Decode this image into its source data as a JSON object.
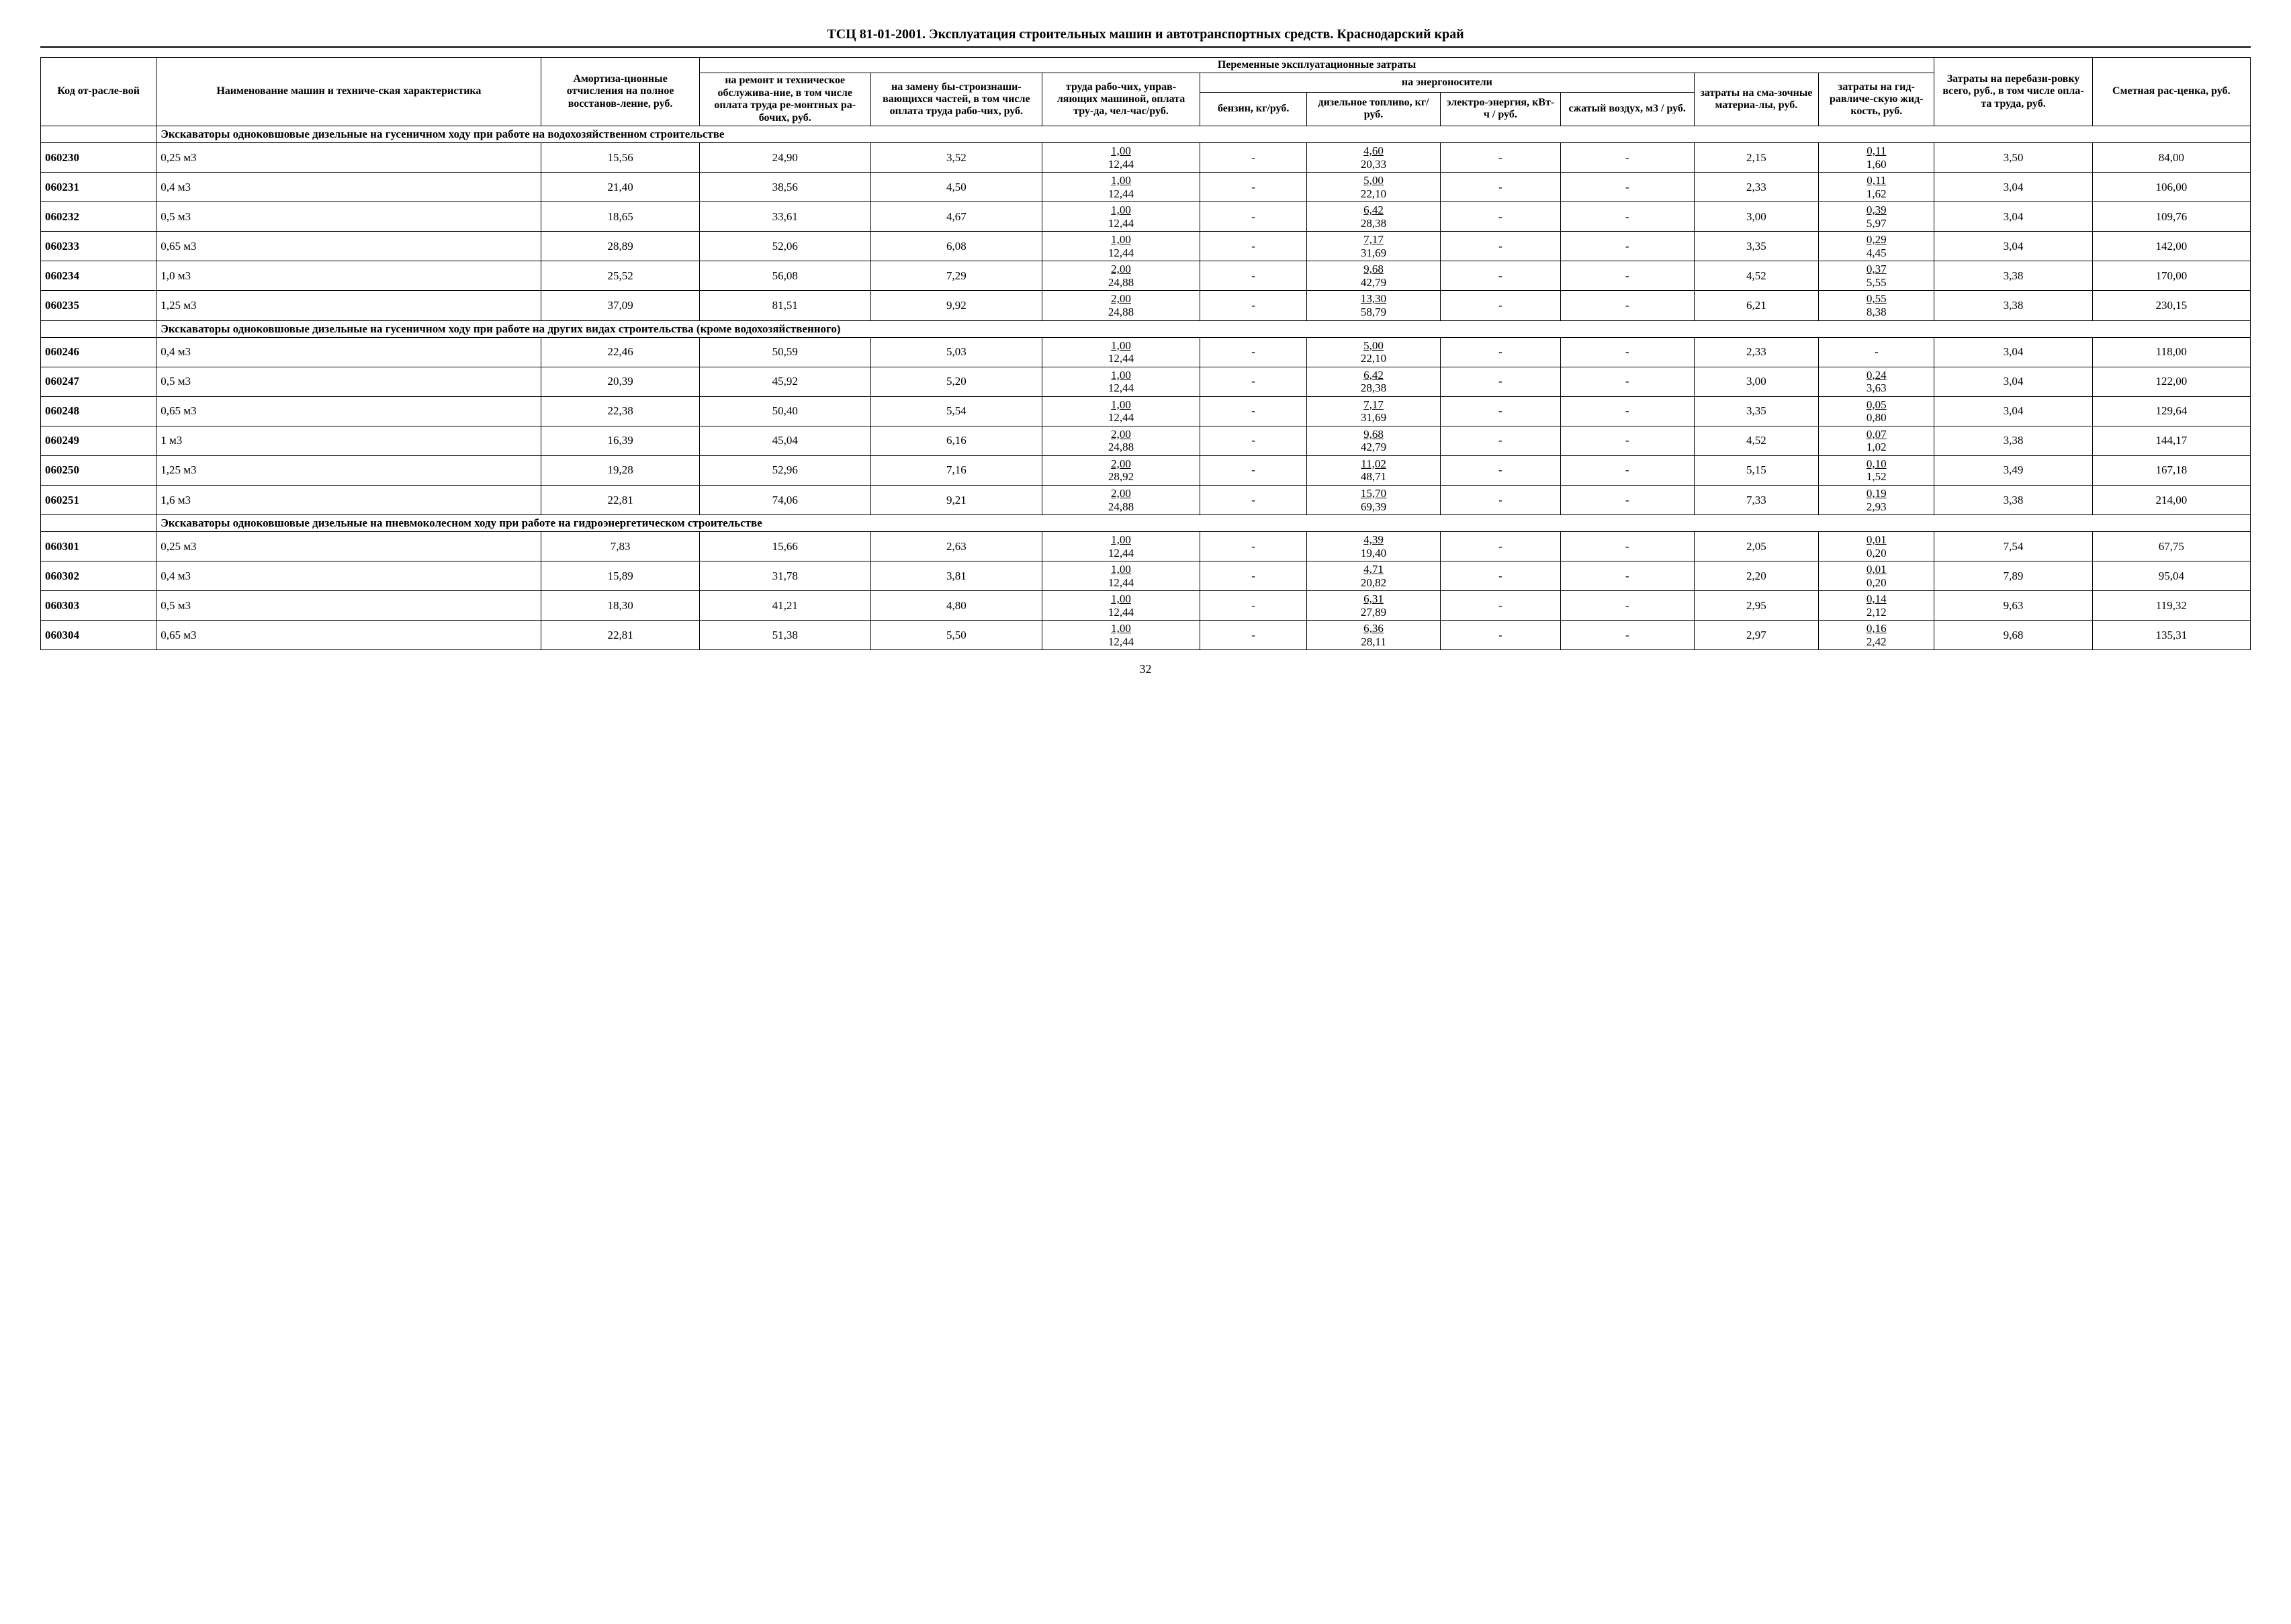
{
  "title": "ТСЦ 81-01-2001. Эксплуатация строительных машин и автотранспортных средств. Краснодарский край",
  "page_number": "32",
  "headers": {
    "code": "Код от-расле-вой",
    "name": "Наименование машин и техниче-ская характеристика",
    "amort": "Амортиза-ционные отчисления на полное восстанов-ление, руб.",
    "variable_costs": "Переменные эксплуатационные затраты",
    "remont": "на ремонт и техническое обслужива-ние, в том числе оплата труда ре-монтных ра-бочих, руб.",
    "zamena": "на замену бы-строизнаши-вающихся частей, в том числе оплата труда рабо-чих, руб.",
    "trud": "труда рабо-чих, управ-ляющих машиной, оплата тру-да, чел-час/руб.",
    "energo": "на энергоносители",
    "benzin": "бензин, кг/руб.",
    "dizel": "дизельное топливо, кг/руб.",
    "elektro": "электро-энергия, кВт-ч / руб.",
    "vozduh": "сжатый воздух, м3 / руб.",
    "smaz": "затраты на сма-зочные материа-лы, руб.",
    "gidr": "затраты на гид-равличе-скую жид-кость, руб.",
    "pereb": "Затраты на перебази-ровку всего, руб., в том числе опла-та труда, руб.",
    "smet": "Сметная рас-ценка, руб."
  },
  "sections": [
    {
      "title": "Экскаваторы одноковшовые дизельные на гусеничном ходу при работе на водохозяйственном строительстве",
      "rows": [
        {
          "code": "060230",
          "name": "0,25 м3",
          "amort": "15,56",
          "remont": "24,90",
          "zamena": "3,52",
          "trud_top": "1,00",
          "trud_bot": "12,44",
          "benzin": "-",
          "dizel_top": "4,60",
          "dizel_bot": "20,33",
          "elektro": "-",
          "vozduh": "-",
          "smaz": "2,15",
          "gidr_top": "0,11",
          "gidr_bot": "1,60",
          "pereb": "3,50",
          "smet": "84,00"
        },
        {
          "code": "060231",
          "name": "0,4 м3",
          "amort": "21,40",
          "remont": "38,56",
          "zamena": "4,50",
          "trud_top": "1,00",
          "trud_bot": "12,44",
          "benzin": "-",
          "dizel_top": "5,00",
          "dizel_bot": "22,10",
          "elektro": "-",
          "vozduh": "-",
          "smaz": "2,33",
          "gidr_top": "0,11",
          "gidr_bot": "1,62",
          "pereb": "3,04",
          "smet": "106,00"
        },
        {
          "code": "060232",
          "name": "0,5 м3",
          "amort": "18,65",
          "remont": "33,61",
          "zamena": "4,67",
          "trud_top": "1,00",
          "trud_bot": "12,44",
          "benzin": "-",
          "dizel_top": "6,42",
          "dizel_bot": "28,38",
          "elektro": "-",
          "vozduh": "-",
          "smaz": "3,00",
          "gidr_top": "0,39",
          "gidr_bot": "5,97",
          "pereb": "3,04",
          "smet": "109,76"
        },
        {
          "code": "060233",
          "name": "0,65 м3",
          "amort": "28,89",
          "remont": "52,06",
          "zamena": "6,08",
          "trud_top": "1,00",
          "trud_bot": "12,44",
          "benzin": "-",
          "dizel_top": "7,17",
          "dizel_bot": "31,69",
          "elektro": "-",
          "vozduh": "-",
          "smaz": "3,35",
          "gidr_top": "0,29",
          "gidr_bot": "4,45",
          "pereb": "3,04",
          "smet": "142,00"
        },
        {
          "code": "060234",
          "name": "1,0 м3",
          "amort": "25,52",
          "remont": "56,08",
          "zamena": "7,29",
          "trud_top": "2,00",
          "trud_bot": "24,88",
          "benzin": "-",
          "dizel_top": "9,68",
          "dizel_bot": "42,79",
          "elektro": "-",
          "vozduh": "-",
          "smaz": "4,52",
          "gidr_top": "0,37",
          "gidr_bot": "5,55",
          "pereb": "3,38",
          "smet": "170,00"
        },
        {
          "code": "060235",
          "name": "1,25 м3",
          "amort": "37,09",
          "remont": "81,51",
          "zamena": "9,92",
          "trud_top": "2,00",
          "trud_bot": "24,88",
          "benzin": "-",
          "dizel_top": "13,30",
          "dizel_bot": "58,79",
          "elektro": "-",
          "vozduh": "-",
          "smaz": "6,21",
          "gidr_top": "0,55",
          "gidr_bot": "8,38",
          "pereb": "3,38",
          "smet": "230,15"
        }
      ]
    },
    {
      "title": "Экскаваторы одноковшовые дизельные на гусеничном ходу при работе на других видах строительства (кроме водохозяйственного)",
      "rows": [
        {
          "code": "060246",
          "name": "0,4 м3",
          "amort": "22,46",
          "remont": "50,59",
          "zamena": "5,03",
          "trud_top": "1,00",
          "trud_bot": "12,44",
          "benzin": "-",
          "dizel_top": "5,00",
          "dizel_bot": "22,10",
          "elektro": "-",
          "vozduh": "-",
          "smaz": "2,33",
          "gidr_top": "",
          "gidr_bot": "-",
          "pereb": "3,04",
          "smet": "118,00"
        },
        {
          "code": "060247",
          "name": "0,5 м3",
          "amort": "20,39",
          "remont": "45,92",
          "zamena": "5,20",
          "trud_top": "1,00",
          "trud_bot": "12,44",
          "benzin": "-",
          "dizel_top": "6,42",
          "dizel_bot": "28,38",
          "elektro": "-",
          "vozduh": "-",
          "smaz": "3,00",
          "gidr_top": "0,24",
          "gidr_bot": "3,63",
          "pereb": "3,04",
          "smet": "122,00"
        },
        {
          "code": "060248",
          "name": "0,65 м3",
          "amort": "22,38",
          "remont": "50,40",
          "zamena": "5,54",
          "trud_top": "1,00",
          "trud_bot": "12,44",
          "benzin": "-",
          "dizel_top": "7,17",
          "dizel_bot": "31,69",
          "elektro": "-",
          "vozduh": "-",
          "smaz": "3,35",
          "gidr_top": "0,05",
          "gidr_bot": "0,80",
          "pereb": "3,04",
          "smet": "129,64"
        },
        {
          "code": "060249",
          "name": "1 м3",
          "amort": "16,39",
          "remont": "45,04",
          "zamena": "6,16",
          "trud_top": "2,00",
          "trud_bot": "24,88",
          "benzin": "-",
          "dizel_top": "9,68",
          "dizel_bot": "42,79",
          "elektro": "-",
          "vozduh": "-",
          "smaz": "4,52",
          "gidr_top": "0,07",
          "gidr_bot": "1,02",
          "pereb": "3,38",
          "smet": "144,17"
        },
        {
          "code": "060250",
          "name": "1,25 м3",
          "amort": "19,28",
          "remont": "52,96",
          "zamena": "7,16",
          "trud_top": "2,00",
          "trud_bot": "28,92",
          "benzin": "-",
          "dizel_top": "11,02",
          "dizel_bot": "48,71",
          "elektro": "-",
          "vozduh": "-",
          "smaz": "5,15",
          "gidr_top": "0,10",
          "gidr_bot": "1,52",
          "pereb": "3,49",
          "smet": "167,18"
        },
        {
          "code": "060251",
          "name": "1,6 м3",
          "amort": "22,81",
          "remont": "74,06",
          "zamena": "9,21",
          "trud_top": "2,00",
          "trud_bot": "24,88",
          "benzin": "-",
          "dizel_top": "15,70",
          "dizel_bot": "69,39",
          "elektro": "-",
          "vozduh": "-",
          "smaz": "7,33",
          "gidr_top": "0,19",
          "gidr_bot": "2,93",
          "pereb": "3,38",
          "smet": "214,00"
        }
      ]
    },
    {
      "title": "Экскаваторы одноковшовые дизельные на пневмоколесном ходу при работе на гидроэнергетическом строительстве",
      "rows": [
        {
          "code": "060301",
          "name": "0,25 м3",
          "amort": "7,83",
          "remont": "15,66",
          "zamena": "2,63",
          "trud_top": "1,00",
          "trud_bot": "12,44",
          "benzin": "-",
          "dizel_top": "4,39",
          "dizel_bot": "19,40",
          "elektro": "-",
          "vozduh": "-",
          "smaz": "2,05",
          "gidr_top": "0,01",
          "gidr_bot": "0,20",
          "pereb": "7,54",
          "smet": "67,75"
        },
        {
          "code": "060302",
          "name": "0,4 м3",
          "amort": "15,89",
          "remont": "31,78",
          "zamena": "3,81",
          "trud_top": "1,00",
          "trud_bot": "12,44",
          "benzin": "-",
          "dizel_top": "4,71",
          "dizel_bot": "20,82",
          "elektro": "-",
          "vozduh": "-",
          "smaz": "2,20",
          "gidr_top": "0,01",
          "gidr_bot": "0,20",
          "pereb": "7,89",
          "smet": "95,04"
        },
        {
          "code": "060303",
          "name": "0,5 м3",
          "amort": "18,30",
          "remont": "41,21",
          "zamena": "4,80",
          "trud_top": "1,00",
          "trud_bot": "12,44",
          "benzin": "-",
          "dizel_top": "6,31",
          "dizel_bot": "27,89",
          "elektro": "-",
          "vozduh": "-",
          "smaz": "2,95",
          "gidr_top": "0,14",
          "gidr_bot": "2,12",
          "pereb": "9,63",
          "smet": "119,32"
        },
        {
          "code": "060304",
          "name": "0,65 м3",
          "amort": "22,81",
          "remont": "51,38",
          "zamena": "5,50",
          "trud_top": "1,00",
          "trud_bot": "12,44",
          "benzin": "-",
          "dizel_top": "6,36",
          "dizel_bot": "28,11",
          "elektro": "-",
          "vozduh": "-",
          "smaz": "2,97",
          "gidr_top": "0,16",
          "gidr_bot": "2,42",
          "pereb": "9,68",
          "smet": "135,31"
        }
      ]
    }
  ]
}
